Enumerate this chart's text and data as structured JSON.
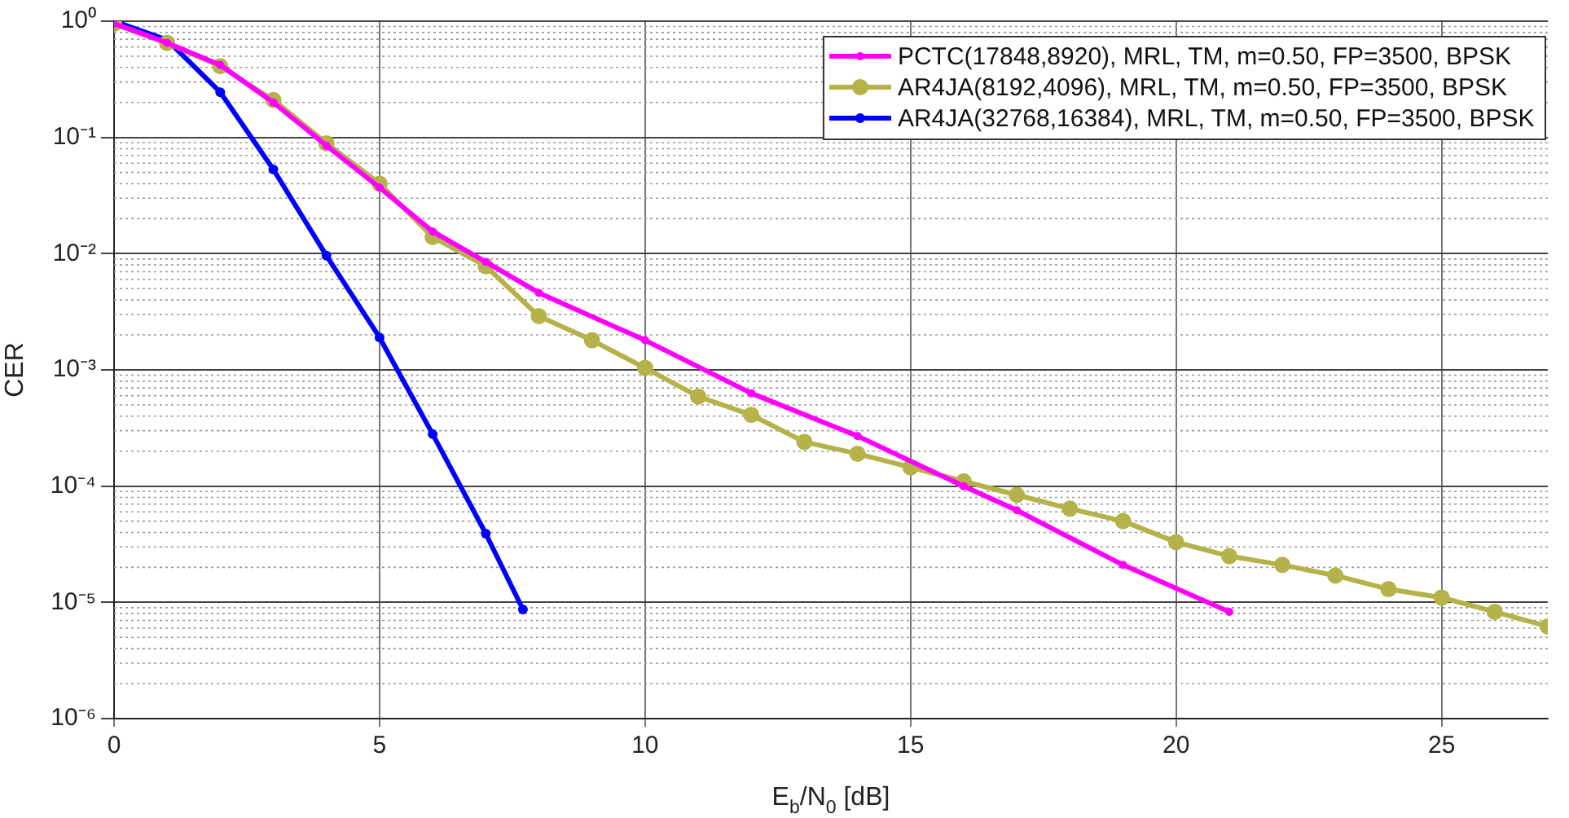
{
  "chart_data": {
    "type": "line",
    "xlabel": "E$_{b}$/N$_{0}$ [dB]",
    "ylabel": "CER",
    "log": "y",
    "grid": true,
    "legend": "top right",
    "marker": "circle",
    "line_style": "solid",
    "xlim": [
      0,
      27
    ],
    "xticks": [
      0,
      5,
      10,
      15,
      20,
      25
    ],
    "ylim": [
      1e-06,
      1
    ],
    "yticks": [
      {
        "value": 1,
        "label": "10⁰"
      },
      {
        "value": 0.1,
        "label": "10⁻¹"
      },
      {
        "value": 0.01,
        "label": "10⁻²"
      },
      {
        "value": 0.001,
        "label": "10⁻³"
      },
      {
        "value": 0.0001,
        "label": "10⁻⁴"
      },
      {
        "value": 1e-05,
        "label": "10⁻⁵"
      },
      {
        "value": 1e-06,
        "label": "10⁻⁶"
      }
    ],
    "series": [
      {
        "name": "PCTC(17848,8920), MRL, TM, m=0.50, FP=3500, BPSK",
        "color": "#ff00ff",
        "x": [
          0,
          1,
          2,
          3,
          4,
          5,
          6,
          7,
          8,
          10,
          12,
          14,
          16,
          17,
          19,
          21
        ],
        "values": [
          0.95,
          0.65,
          0.42,
          0.2,
          0.085,
          0.037,
          0.0155,
          0.0085,
          0.0046,
          0.0018,
          0.00063,
          0.00027,
          0.0001,
          6.2e-05,
          2.1e-05,
          8.3e-06
        ]
      },
      {
        "name": "AR4JA(8192,4096), MRL, TM, m=0.50, FP=3500, BPSK",
        "color": "#b5b24a",
        "x": [
          0,
          1,
          2,
          3,
          4,
          5,
          6,
          7,
          8,
          9,
          10,
          11,
          12,
          13,
          14,
          15,
          16,
          17,
          18,
          19,
          20,
          21,
          22,
          23,
          24,
          25,
          26,
          27
        ],
        "values": [
          0.95,
          0.65,
          0.41,
          0.21,
          0.089,
          0.04,
          0.0139,
          0.0078,
          0.0029,
          0.0018,
          0.00104,
          0.00059,
          0.00041,
          0.00024,
          0.00019,
          0.000145,
          0.00011,
          8.4e-05,
          6.4e-05,
          5e-05,
          3.3e-05,
          2.5e-05,
          2.1e-05,
          1.7e-05,
          1.3e-05,
          1.1e-05,
          8.3e-06,
          6.2e-06
        ]
      },
      {
        "name": "AR4JA(32768,16384), MRL, TM, m=0.50, FP=3500, BPSK",
        "color": "#0000ff",
        "x": [
          0,
          1,
          2,
          3,
          4,
          5,
          6,
          7,
          7.7
        ],
        "values": [
          1,
          0.69,
          0.245,
          0.053,
          0.0096,
          0.0019,
          0.00028,
          3.9e-05,
          8.7e-06
        ]
      }
    ]
  }
}
